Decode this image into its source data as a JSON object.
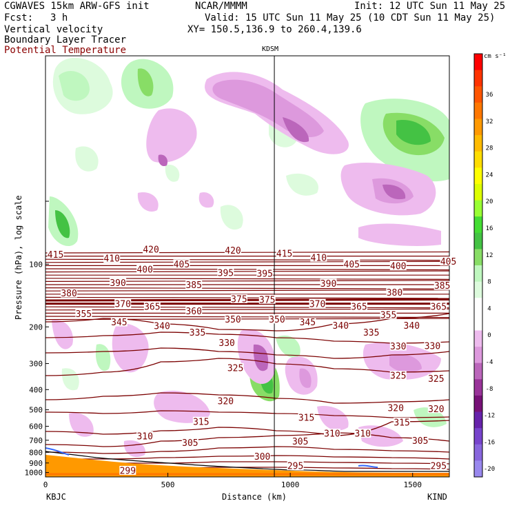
{
  "header": {
    "model": "CGWAVES 15km ARW-GFS init",
    "org": "NCAR/MMMM",
    "init": "Init: 12 UTC Sun 11 May 25",
    "fcst_label": "Fcst:",
    "fcst_value": "3 h",
    "valid": "Valid: 15 UTC Sun 11 May 25 (10 CDT Sun 11 May 25)",
    "field1": "Vertical velocity",
    "field2": "Boundary Layer Tracer",
    "field3": "Potential Temperature",
    "xy": "XY= 150.5,136.9 to 260.4,139.6"
  },
  "colors": {
    "theta": "#7b0000",
    "terrain": "#ff9900",
    "frame": "#000000"
  },
  "chart_data": {
    "type": "cross-section",
    "station_marker": {
      "label": "KDSM",
      "distance_km": 935
    },
    "x_axis": {
      "label": "Distance (km)",
      "range": [
        0,
        1650
      ],
      "ticks": [
        0,
        500,
        1000,
        1500
      ],
      "tick_labels": [
        "0",
        "500",
        "1000",
        "1500"
      ],
      "left_label": "KBJC",
      "right_label": "KIND"
    },
    "y_axis": {
      "label": "Pressure (hPa), log scale",
      "scale": "log",
      "range": [
        1050,
        10
      ],
      "ticks": [
        100,
        200,
        300,
        400,
        500,
        600,
        700,
        800,
        900,
        1000
      ],
      "tick_labels": [
        "100",
        "200",
        "300",
        "400",
        "500",
        "600",
        "700",
        "800",
        "900",
        "1000"
      ]
    },
    "colorbar": {
      "units": "cm s⁻¹",
      "levels": [
        36,
        32,
        28,
        24,
        20,
        16,
        12,
        8,
        4,
        0,
        -4,
        -8,
        -12,
        -16,
        -20
      ],
      "level_labels": [
        "36",
        "32",
        "28",
        "24",
        "20",
        "16",
        "12",
        "8",
        "4",
        "0",
        "-4",
        "-8",
        "-12",
        "-16",
        "-20"
      ],
      "colors": [
        "#ff0000",
        "#ff3300",
        "#ff5500",
        "#ff7700",
        "#ff9900",
        "#ffbb00",
        "#ffdd00",
        "#ffff00",
        "#ddff00",
        "#99ff33",
        "#44dd33",
        "#44c244",
        "#88dd66",
        "#bff7bf",
        "#ddfbdd",
        "#ffffff",
        "#ffffff",
        "#eebbee",
        "#dd99dd",
        "#bb66bb",
        "#993399",
        "#771177",
        "#6622aa",
        "#7744cc",
        "#8866dd",
        "#9988ee"
      ]
    },
    "theta_labels": [
      {
        "text": "415",
        "x": 10,
        "p": 90
      },
      {
        "text": "420",
        "x": 400,
        "p": 85
      },
      {
        "text": "420",
        "x": 735,
        "p": 86
      },
      {
        "text": "415",
        "x": 945,
        "p": 89
      },
      {
        "text": "410",
        "x": 1085,
        "p": 93
      },
      {
        "text": "405",
        "x": 1220,
        "p": 100
      },
      {
        "text": "400",
        "x": 1410,
        "p": 102
      },
      {
        "text": "405",
        "x": 1615,
        "p": 97
      },
      {
        "text": "410",
        "x": 240,
        "p": 94
      },
      {
        "text": "405",
        "x": 525,
        "p": 100
      },
      {
        "text": "400",
        "x": 375,
        "p": 106
      },
      {
        "text": "395",
        "x": 705,
        "p": 110
      },
      {
        "text": "395",
        "x": 865,
        "p": 111
      },
      {
        "text": "390",
        "x": 265,
        "p": 123
      },
      {
        "text": "385",
        "x": 575,
        "p": 126
      },
      {
        "text": "390",
        "x": 1125,
        "p": 124
      },
      {
        "text": "380",
        "x": 1395,
        "p": 137
      },
      {
        "text": "385",
        "x": 1590,
        "p": 127
      },
      {
        "text": "380",
        "x": 65,
        "p": 138
      },
      {
        "text": "375",
        "x": 760,
        "p": 147
      },
      {
        "text": "375",
        "x": 875,
        "p": 148
      },
      {
        "text": "370",
        "x": 285,
        "p": 155
      },
      {
        "text": "370",
        "x": 1080,
        "p": 155
      },
      {
        "text": "365",
        "x": 405,
        "p": 160
      },
      {
        "text": "365",
        "x": 1250,
        "p": 160
      },
      {
        "text": "365",
        "x": 1575,
        "p": 160
      },
      {
        "text": "360",
        "x": 575,
        "p": 168
      },
      {
        "text": "355",
        "x": 125,
        "p": 173
      },
      {
        "text": "355",
        "x": 1370,
        "p": 175
      },
      {
        "text": "350",
        "x": 735,
        "p": 184
      },
      {
        "text": "350",
        "x": 915,
        "p": 184
      },
      {
        "text": "345",
        "x": 270,
        "p": 190
      },
      {
        "text": "345",
        "x": 1040,
        "p": 190
      },
      {
        "text": "340",
        "x": 445,
        "p": 198
      },
      {
        "text": "340",
        "x": 1175,
        "p": 197
      },
      {
        "text": "340",
        "x": 1465,
        "p": 197
      },
      {
        "text": "335",
        "x": 590,
        "p": 213
      },
      {
        "text": "335",
        "x": 1300,
        "p": 213
      },
      {
        "text": "330",
        "x": 710,
        "p": 239
      },
      {
        "text": "330",
        "x": 1410,
        "p": 248
      },
      {
        "text": "330",
        "x": 1550,
        "p": 247
      },
      {
        "text": "325",
        "x": 745,
        "p": 315
      },
      {
        "text": "325",
        "x": 1410,
        "p": 343
      },
      {
        "text": "325",
        "x": 1565,
        "p": 355
      },
      {
        "text": "320",
        "x": 705,
        "p": 455
      },
      {
        "text": "320",
        "x": 1400,
        "p": 490
      },
      {
        "text": "320",
        "x": 1565,
        "p": 495
      },
      {
        "text": "315",
        "x": 605,
        "p": 570
      },
      {
        "text": "315",
        "x": 1035,
        "p": 545
      },
      {
        "text": "315",
        "x": 1425,
        "p": 575
      },
      {
        "text": "310",
        "x": 375,
        "p": 670
      },
      {
        "text": "310",
        "x": 1140,
        "p": 650
      },
      {
        "text": "310",
        "x": 1265,
        "p": 650
      },
      {
        "text": "305",
        "x": 560,
        "p": 720
      },
      {
        "text": "305",
        "x": 1010,
        "p": 710
      },
      {
        "text": "305",
        "x": 1500,
        "p": 705
      },
      {
        "text": "300",
        "x": 855,
        "p": 840
      },
      {
        "text": "299",
        "x": 305,
        "p": 980
      },
      {
        "text": "295",
        "x": 990,
        "p": 930
      },
      {
        "text": "295",
        "x": 1575,
        "p": 930
      }
    ]
  }
}
